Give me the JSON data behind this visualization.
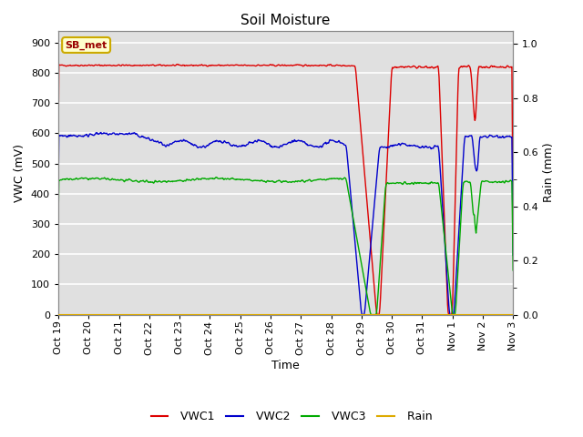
{
  "title": "Soil Moisture",
  "xlabel": "Time",
  "ylabel_left": "VWC (mV)",
  "ylabel_right": "Rain (mm)",
  "ylim_left": [
    0,
    940
  ],
  "ylim_right": [
    0,
    1.05
  ],
  "yticks_left": [
    0,
    100,
    200,
    300,
    400,
    500,
    600,
    700,
    800,
    900
  ],
  "yticks_right": [
    0.0,
    0.2,
    0.4,
    0.6,
    0.8,
    1.0
  ],
  "background_color": "#ffffff",
  "plot_bg_color": "#e0e0e0",
  "grid_color": "#ffffff",
  "annotation_text": "SB_met",
  "annotation_bg": "#ffffcc",
  "annotation_border": "#ccaa00",
  "annotation_text_color": "#990000",
  "line_colors": {
    "VWC1": "#dd0000",
    "VWC2": "#0000cc",
    "VWC3": "#00aa00",
    "Rain": "#ddaa00"
  },
  "x_tick_labels": [
    "Oct 19",
    "Oct 20",
    "Oct 21",
    "Oct 22",
    "Oct 23",
    "Oct 24",
    "Oct 25",
    "Oct 26",
    "Oct 27",
    "Oct 28",
    "Oct 29",
    "Oct 30",
    "Oct 31",
    "Nov 1",
    "Nov 2",
    "Nov 3"
  ]
}
